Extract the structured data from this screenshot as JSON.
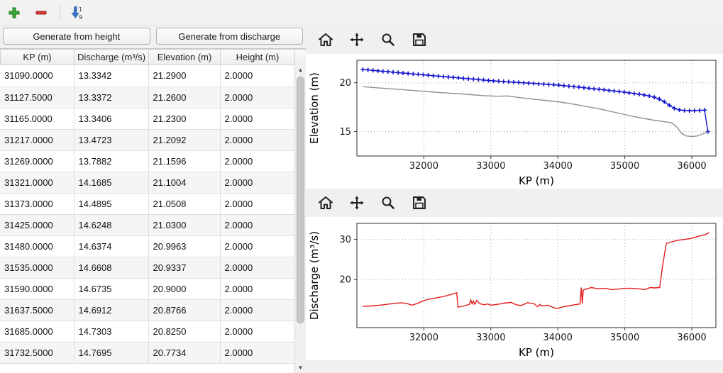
{
  "top_toolbar": {
    "buttons": [
      {
        "name": "add-row-button",
        "icon": "plus-icon"
      },
      {
        "name": "remove-row-button",
        "icon": "minus-icon"
      },
      {
        "name": "sort-rows-button",
        "icon": "sort-numeric-icon",
        "digits_top": "1",
        "digits_bottom": "9"
      }
    ]
  },
  "left_panel": {
    "generate_from_height_label": "Generate from height",
    "generate_from_discharge_label": "Generate from discharge",
    "table": {
      "columns": [
        "KP (m)",
        "Discharge (m³/s)",
        "Elevation (m)",
        "Height (m)"
      ],
      "rows": [
        [
          "31090.0000",
          "13.3342",
          "21.2900",
          "2.0000"
        ],
        [
          "31127.5000",
          "13.3372",
          "21.2600",
          "2.0000"
        ],
        [
          "31165.0000",
          "13.3406",
          "21.2300",
          "2.0000"
        ],
        [
          "31217.0000",
          "13.4723",
          "21.2092",
          "2.0000"
        ],
        [
          "31269.0000",
          "13.7882",
          "21.1596",
          "2.0000"
        ],
        [
          "31321.0000",
          "14.1685",
          "21.1004",
          "2.0000"
        ],
        [
          "31373.0000",
          "14.4895",
          "21.0508",
          "2.0000"
        ],
        [
          "31425.0000",
          "14.6248",
          "21.0300",
          "2.0000"
        ],
        [
          "31480.0000",
          "14.6374",
          "20.9963",
          "2.0000"
        ],
        [
          "31535.0000",
          "14.6608",
          "20.9337",
          "2.0000"
        ],
        [
          "31590.0000",
          "14.6735",
          "20.9000",
          "2.0000"
        ],
        [
          "31637.5000",
          "14.6912",
          "20.8766",
          "2.0000"
        ],
        [
          "31685.0000",
          "14.7303",
          "20.8250",
          "2.0000"
        ],
        [
          "31732.5000",
          "14.7695",
          "20.7734",
          "2.0000"
        ]
      ],
      "scrollbar": {
        "up_glyph": "▲",
        "down_glyph": "▼"
      }
    }
  },
  "mpl_toolbar_icons": [
    "home-icon",
    "pan-icon",
    "zoom-icon",
    "save-icon"
  ],
  "chart_data": [
    {
      "type": "line",
      "title": "",
      "xlabel": "KP (m)",
      "ylabel": "Elevation (m)",
      "xlim": [
        31000,
        36360
      ],
      "ylim": [
        12.5,
        22.3
      ],
      "xticks": [
        32000,
        33000,
        34000,
        35000,
        36000
      ],
      "yticks": [
        15,
        20
      ],
      "grid": true,
      "legend": "none",
      "series": [
        {
          "name": "weir-crest-elevation",
          "color": "#1212cc",
          "marker": "+",
          "x": [
            31090,
            31165,
            31240,
            31315,
            31390,
            31465,
            31540,
            31615,
            31690,
            31765,
            31840,
            31915,
            31990,
            32065,
            32140,
            32215,
            32290,
            32365,
            32440,
            32515,
            32590,
            32665,
            32740,
            32815,
            32890,
            32965,
            33040,
            33115,
            33190,
            33265,
            33340,
            33415,
            33490,
            33565,
            33640,
            33715,
            33790,
            33865,
            33940,
            34015,
            34090,
            34165,
            34240,
            34315,
            34390,
            34465,
            34540,
            34615,
            34690,
            34765,
            34840,
            34915,
            34990,
            35065,
            35140,
            35215,
            35290,
            35365,
            35440,
            35515,
            35590,
            35665,
            35740,
            35815,
            35890,
            35965,
            36040,
            36115,
            36190,
            36240
          ],
          "y": [
            21.35,
            21.31,
            21.26,
            21.22,
            21.17,
            21.13,
            21.08,
            21.04,
            20.99,
            20.95,
            20.9,
            20.86,
            20.81,
            20.77,
            20.72,
            20.68,
            20.63,
            20.59,
            20.54,
            20.5,
            20.45,
            20.41,
            20.37,
            20.32,
            20.28,
            20.23,
            20.19,
            20.16,
            20.13,
            20.09,
            20.06,
            20.03,
            19.99,
            19.96,
            19.93,
            19.89,
            19.86,
            19.82,
            19.79,
            19.75,
            19.7,
            19.65,
            19.6,
            19.55,
            19.49,
            19.44,
            19.38,
            19.33,
            19.27,
            19.21,
            19.16,
            19.1,
            19.04,
            18.97,
            18.9,
            18.82,
            18.74,
            18.65,
            18.52,
            18.32,
            18.05,
            17.7,
            17.38,
            17.22,
            17.16,
            17.14,
            17.15,
            17.17,
            17.2,
            15.0
          ]
        },
        {
          "name": "ground-profile",
          "color": "#909090",
          "marker": null,
          "x": [
            31090,
            31300,
            31500,
            31700,
            31900,
            32100,
            32300,
            32500,
            32700,
            32900,
            33100,
            33250,
            33400,
            33600,
            33800,
            34000,
            34200,
            34400,
            34600,
            34800,
            35000,
            35200,
            35400,
            35550,
            35700,
            35780,
            35850,
            35920,
            36000,
            36080,
            36160,
            36240
          ],
          "y": [
            19.6,
            19.48,
            19.38,
            19.28,
            19.17,
            19.07,
            18.97,
            18.88,
            18.78,
            18.68,
            18.62,
            18.65,
            18.5,
            18.35,
            18.2,
            18.05,
            17.85,
            17.6,
            17.35,
            17.05,
            16.75,
            16.45,
            16.2,
            16.05,
            15.9,
            15.45,
            14.8,
            14.55,
            14.5,
            14.55,
            14.75,
            15.0
          ]
        }
      ]
    },
    {
      "type": "line",
      "title": "",
      "xlabel": "KP (m)",
      "ylabel": "Discharge (m³/s)",
      "xlim": [
        31000,
        36360
      ],
      "ylim": [
        8,
        34
      ],
      "xticks": [
        32000,
        33000,
        34000,
        35000,
        36000
      ],
      "yticks": [
        20,
        30
      ],
      "grid": true,
      "legend": "none",
      "series": [
        {
          "name": "discharge",
          "color": "#e31a1a",
          "marker": null,
          "x": [
            31090,
            31200,
            31350,
            31500,
            31650,
            31750,
            31820,
            31900,
            31980,
            32050,
            32150,
            32250,
            32350,
            32430,
            32470,
            32490,
            32510,
            32600,
            32680,
            32700,
            32720,
            32740,
            32760,
            32790,
            32820,
            32850,
            32900,
            32950,
            33000,
            33100,
            33200,
            33300,
            33380,
            33450,
            33550,
            33650,
            33700,
            33730,
            33760,
            33850,
            33950,
            34000,
            34050,
            34150,
            34250,
            34330,
            34350,
            34365,
            34380,
            34420,
            34500,
            34600,
            34700,
            34800,
            34900,
            35000,
            35100,
            35200,
            35300,
            35380,
            35450,
            35520,
            35570,
            35620,
            35700,
            35800,
            35900,
            36000,
            36100,
            36200,
            36260
          ],
          "y": [
            13.3,
            13.4,
            13.6,
            13.9,
            14.2,
            14.0,
            13.6,
            14.0,
            14.6,
            15.0,
            15.3,
            15.6,
            16.0,
            16.4,
            16.6,
            16.7,
            13.1,
            13.4,
            13.8,
            14.9,
            13.9,
            14.6,
            13.8,
            14.8,
            14.2,
            13.9,
            13.7,
            13.9,
            13.6,
            13.8,
            14.1,
            14.3,
            13.7,
            13.5,
            14.2,
            13.9,
            13.2,
            13.8,
            13.4,
            13.6,
            12.9,
            12.8,
            13.1,
            13.4,
            13.7,
            13.9,
            18.0,
            14.0,
            17.4,
            17.6,
            18.0,
            17.7,
            17.8,
            17.5,
            17.6,
            17.8,
            17.8,
            17.7,
            17.5,
            18.0,
            17.9,
            18.0,
            24.0,
            29.0,
            29.4,
            29.8,
            30.0,
            30.3,
            30.8,
            31.2,
            31.7
          ]
        }
      ]
    }
  ]
}
